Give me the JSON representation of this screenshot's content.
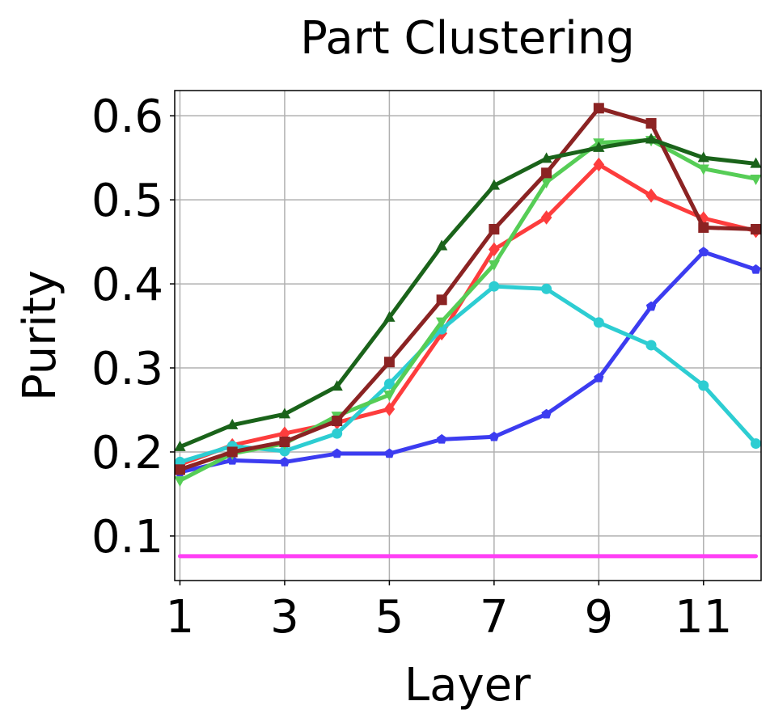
{
  "chart_data": {
    "type": "line",
    "title": "Part Clustering",
    "xlabel": "Layer",
    "ylabel": "Purity",
    "x": [
      1,
      2,
      3,
      4,
      5,
      6,
      7,
      8,
      9,
      10,
      11,
      12
    ],
    "xticks": [
      "1",
      "3",
      "5",
      "7",
      "9",
      "11"
    ],
    "xtick_values": [
      1,
      3,
      5,
      7,
      9,
      11
    ],
    "yticks": [
      "0.1",
      "0.2",
      "0.3",
      "0.4",
      "0.5",
      "0.6"
    ],
    "ytick_values": [
      0.1,
      0.2,
      0.3,
      0.4,
      0.5,
      0.6
    ],
    "xlim": [
      0.9,
      12.1
    ],
    "ylim": [
      0.047,
      0.63
    ],
    "grid": true,
    "series": [
      {
        "color": "#ff3ff5",
        "marker": "none",
        "values": [
          0.076,
          0.076,
          0.076,
          0.076,
          0.076,
          0.076,
          0.076,
          0.076,
          0.076,
          0.076,
          0.076,
          0.076
        ]
      },
      {
        "color": "#3c3cf0",
        "marker": "pentagon",
        "values": [
          0.176,
          0.19,
          0.188,
          0.198,
          0.198,
          0.215,
          0.218,
          0.245,
          0.288,
          0.373,
          0.438,
          0.417
        ]
      },
      {
        "color": "#fd3d3d",
        "marker": "diamond",
        "values": [
          0.185,
          0.208,
          0.222,
          0.235,
          0.251,
          0.341,
          0.441,
          0.479,
          0.542,
          0.505,
          0.478,
          0.463
        ]
      },
      {
        "color": "#2dcdd2",
        "marker": "circle",
        "values": [
          0.188,
          0.207,
          0.201,
          0.222,
          0.281,
          0.346,
          0.397,
          0.394,
          0.354,
          0.327,
          0.279,
          0.21
        ]
      },
      {
        "color": "#56cd56",
        "marker": "triangle-down",
        "values": [
          0.166,
          0.198,
          0.21,
          0.243,
          0.268,
          0.355,
          0.423,
          0.521,
          0.568,
          0.571,
          0.537,
          0.525
        ]
      },
      {
        "color": "#8b2323",
        "marker": "square",
        "values": [
          0.179,
          0.2,
          0.212,
          0.237,
          0.307,
          0.381,
          0.465,
          0.532,
          0.609,
          0.591,
          0.467,
          0.465
        ]
      },
      {
        "color": "#1a631a",
        "marker": "triangle-up",
        "values": [
          0.206,
          0.232,
          0.245,
          0.278,
          0.36,
          0.445,
          0.517,
          0.549,
          0.562,
          0.572,
          0.55,
          0.543
        ]
      }
    ]
  }
}
